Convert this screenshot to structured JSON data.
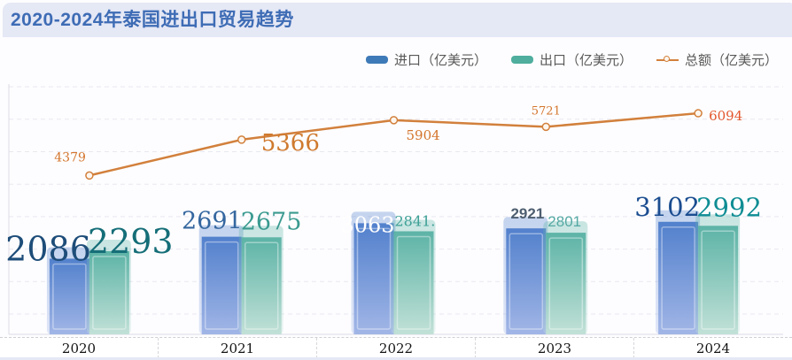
{
  "title": "2020-2024年泰国进出口贸易趋势",
  "legend": {
    "items": [
      {
        "label": "进口（亿美元）",
        "type": "bar",
        "color": "#3f7ab8"
      },
      {
        "label": "出口（亿美元）",
        "type": "bar",
        "color": "#4fae9e"
      },
      {
        "label": "总额（亿美元）",
        "type": "line",
        "color": "#d2803c"
      }
    ]
  },
  "chart_data": {
    "type": "bar",
    "title": "2020-2024年泰国进出口贸易趋势",
    "categories": [
      "2020",
      "2021",
      "2022",
      "2023",
      "2024"
    ],
    "series": [
      {
        "name": "进口（亿美元）",
        "type": "bar",
        "values": [
          2086,
          2691,
          3063,
          2921,
          3102
        ],
        "labels": [
          "2086",
          "2691",
          "3063",
          "2921",
          "3102"
        ]
      },
      {
        "name": "出口（亿美元）",
        "type": "bar",
        "values": [
          2293,
          2675,
          2841,
          2801,
          2992
        ],
        "labels": [
          "2293",
          "2675",
          "2841.",
          "2801",
          "2992"
        ]
      },
      {
        "name": "总额（亿美元）",
        "type": "line",
        "values": [
          4379,
          5366,
          5904,
          5721,
          6094
        ],
        "labels": [
          "4379",
          "5366",
          "5904",
          "5721",
          "6094"
        ]
      }
    ],
    "xlabel": "",
    "ylabel": "",
    "ylim": [
      0,
      6900
    ],
    "grid": "horizontal-dashed",
    "legend_position": "top-right"
  },
  "colors": {
    "title_text": "#3e6cb5",
    "title_bar_bg": "#e5e8f5",
    "import_bar_top": "#4d7dcb",
    "import_bar_bottom": "#9fb4e6",
    "export_bar_top": "#58b1a4",
    "export_bar_bottom": "#c0e0d6",
    "line": "#d2803c",
    "line_label": "#d4752c",
    "line_label_last": "#e4572e",
    "grid_line": "#e8e8f0",
    "axis_line": "#dcdce4",
    "legend_text": "#595959",
    "axis_text": "#141414"
  }
}
